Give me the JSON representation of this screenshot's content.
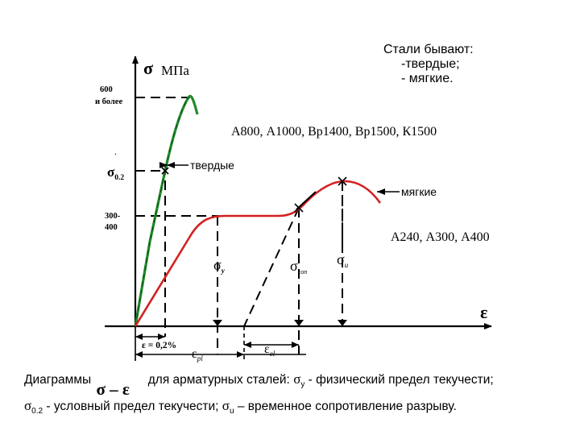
{
  "axes": {
    "y_symbol": "σ",
    "y_unit": "МПа",
    "x_symbol": "ε",
    "tick_600": [
      "600",
      "и более"
    ],
    "tick_sigma02": [
      "σ",
      "0.2"
    ],
    "tick_300": [
      "300-",
      "400"
    ]
  },
  "info_box": {
    "line1": "Стали бывают:",
    "line2": "-твердые;",
    "line3": "- мягкие."
  },
  "labels": {
    "hard_grades": "А800, А1000, Вр1400, Вр1500, К1500",
    "hard": "твердые",
    "soft": "мягкие",
    "soft_grades": "А240, А300, А400",
    "sigma_y": [
      "σ",
      "y"
    ],
    "sigma_con": [
      "σ",
      "con"
    ],
    "sigma_u": [
      "σ",
      "u"
    ],
    "eps_02": "ε = 0,2%",
    "eps_pl": [
      "ε",
      "pl"
    ],
    "eps_el": [
      "ε",
      "el"
    ]
  },
  "caption": {
    "w1": "Диаграммы",
    "formula": "σ – ε",
    "w2": "для арматурных сталей:",
    "sy_sym": "σ",
    "sy_sub": "y",
    "sy_text": "- физический предел текучести;",
    "s02_sym": "σ",
    "s02_sub": "0.2",
    "s02_text": "- условный предел текучести;",
    "su_sym": "σ",
    "su_sub": "u",
    "su_text": "– временное сопротивление разрыву."
  },
  "colors": {
    "hard_curve": "#1f8a2a",
    "soft_curve": "#d42020",
    "ink": "#000000"
  }
}
